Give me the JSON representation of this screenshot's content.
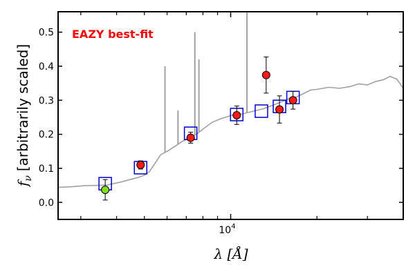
{
  "chart_data": {
    "type": "scatter",
    "xscale": "log",
    "xlim": [
      2500,
      40000
    ],
    "ylim": [
      -0.05,
      0.56
    ],
    "grid": false,
    "xlabel": "λ [Å]",
    "xtick_base": "10",
    "xtick_exp": "4",
    "ylabel_fnu": "f",
    "ylabel_sub": "ν",
    "ylabel_rest": "[arbitrarily scaled]",
    "yticks": [
      "0.0",
      "0.1",
      "0.2",
      "0.3",
      "0.4",
      "0.5"
    ],
    "annotation": {
      "text": "EAZY best-fit",
      "color": "#ff0000"
    },
    "colors": {
      "sed": "#a0a0a0",
      "model_box": "#0000cc",
      "observed": "#ff1a1a",
      "observed_low": "#7fe01a",
      "errorbar": "#000000"
    },
    "sed_continuum": {
      "x": [
        2500,
        2800,
        3100,
        3400,
        3700,
        4000,
        4200,
        4400,
        4600,
        4800,
        5000,
        5200,
        5400,
        5700,
        6000,
        6400,
        6800,
        7200,
        7600,
        8000,
        8600,
        9200,
        10000,
        11000,
        12000,
        13000,
        14000,
        15000,
        16000,
        17000,
        18000,
        19000,
        20000,
        22000,
        24000,
        26000,
        28000,
        30000,
        32000,
        34000,
        36000,
        38000,
        40000
      ],
      "y": [
        0.044,
        0.046,
        0.049,
        0.05,
        0.051,
        0.057,
        0.061,
        0.066,
        0.07,
        0.074,
        0.08,
        0.09,
        0.11,
        0.14,
        0.15,
        0.165,
        0.18,
        0.19,
        0.2,
        0.215,
        0.235,
        0.245,
        0.255,
        0.26,
        0.268,
        0.275,
        0.285,
        0.295,
        0.305,
        0.31,
        0.32,
        0.33,
        0.332,
        0.338,
        0.335,
        0.34,
        0.348,
        0.345,
        0.355,
        0.36,
        0.37,
        0.362,
        0.335
      ]
    },
    "sed_lines": [
      {
        "x": 5900,
        "y": 0.4
      },
      {
        "x": 6550,
        "y": 0.27
      },
      {
        "x": 7500,
        "y": 0.5
      },
      {
        "x": 7750,
        "y": 0.42
      },
      {
        "x": 11400,
        "y": 0.56
      }
    ],
    "model_points": [
      {
        "x": 3650,
        "y": 0.055
      },
      {
        "x": 4850,
        "y": 0.102
      },
      {
        "x": 7250,
        "y": 0.203
      },
      {
        "x": 10500,
        "y": 0.258
      },
      {
        "x": 12800,
        "y": 0.268
      },
      {
        "x": 14800,
        "y": 0.282
      },
      {
        "x": 16500,
        "y": 0.308
      }
    ],
    "observed_points": [
      {
        "x": 3650,
        "y": 0.037,
        "err": 0.03
      },
      {
        "x": 4850,
        "y": 0.11,
        "err": 0.012
      },
      {
        "x": 7250,
        "y": 0.19,
        "err": 0.016
      },
      {
        "x": 10500,
        "y": 0.256,
        "err": 0.027
      },
      {
        "x": 13300,
        "y": 0.374,
        "err": 0.053
      },
      {
        "x": 14800,
        "y": 0.273,
        "err": 0.04
      },
      {
        "x": 16500,
        "y": 0.3,
        "err": 0.026
      }
    ]
  }
}
